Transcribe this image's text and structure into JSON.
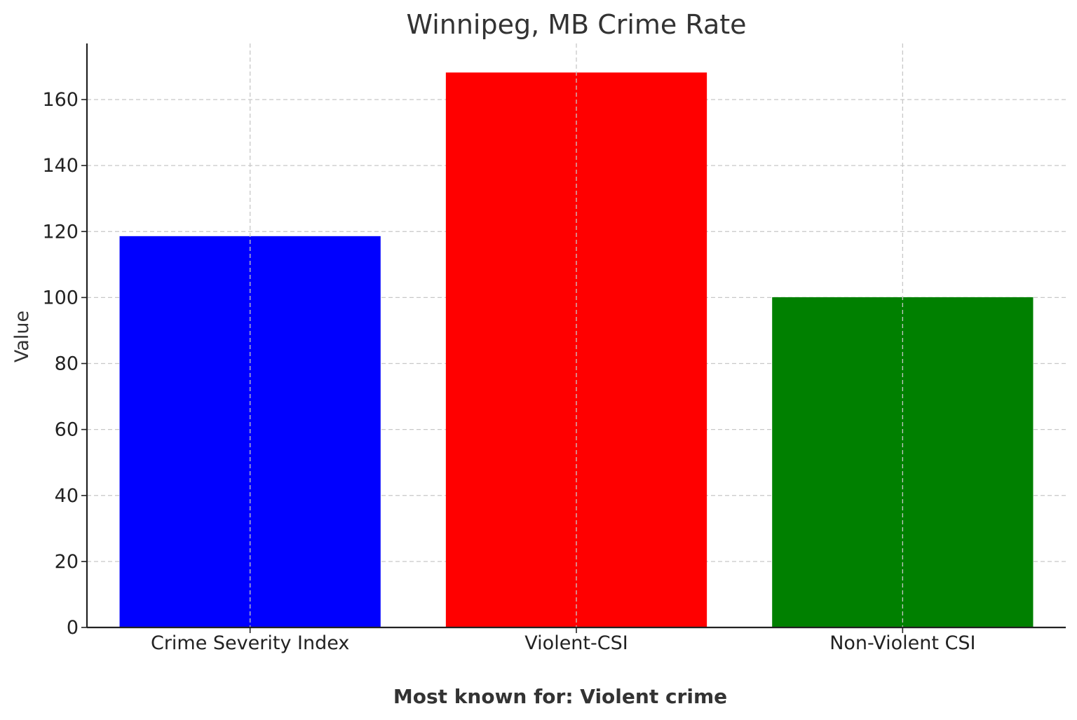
{
  "chart_data": {
    "type": "bar",
    "title": "Winnipeg, MB Crime Rate",
    "xlabel": "Most known for: Violent crime",
    "ylabel": "Value",
    "categories": [
      "Crime Severity Index",
      "Violent-CSI",
      "Non-Violent CSI"
    ],
    "values": [
      118.6,
      168.2,
      100.1
    ],
    "colors": [
      "#0000ff",
      "#ff0000",
      "#008000"
    ],
    "ylim": [
      0,
      177
    ],
    "yticks": [
      0,
      20,
      40,
      60,
      80,
      100,
      120,
      140,
      160
    ],
    "grid": true,
    "legend": "none"
  }
}
